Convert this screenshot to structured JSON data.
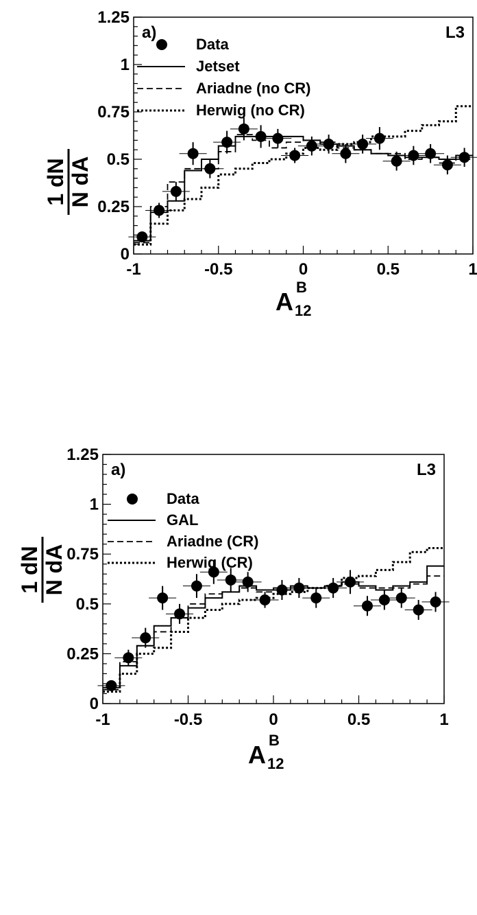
{
  "chart_data": [
    {
      "type": "line",
      "panel_label": "a)",
      "experiment": "L3",
      "xlabel": {
        "main": "A",
        "sub": "12",
        "sup": "B"
      },
      "ylabel": {
        "top": "1 dN",
        "bottom": "N dA"
      },
      "xlim": [
        -1,
        1
      ],
      "ylim": [
        0,
        1.25
      ],
      "xticks": [
        "-1",
        "-0.5",
        "0",
        "0.5",
        "1"
      ],
      "yticks": [
        "0",
        "0.25",
        "0.5",
        "0.75",
        "1",
        "1.25"
      ],
      "legend": [
        {
          "label": "Data",
          "style": "marker"
        },
        {
          "label": "Jetset",
          "style": "solid"
        },
        {
          "label": "Ariadne (no CR)",
          "style": "dashed"
        },
        {
          "label": "Herwig (no CR)",
          "style": "dotted"
        }
      ],
      "data": {
        "name": "Data",
        "x": [
          -0.95,
          -0.85,
          -0.75,
          -0.65,
          -0.55,
          -0.45,
          -0.35,
          -0.25,
          -0.15,
          -0.05,
          0.05,
          0.15,
          0.25,
          0.35,
          0.45,
          0.55,
          0.65,
          0.75,
          0.85,
          0.95
        ],
        "y": [
          0.09,
          0.23,
          0.33,
          0.53,
          0.45,
          0.59,
          0.66,
          0.62,
          0.61,
          0.52,
          0.57,
          0.58,
          0.53,
          0.58,
          0.61,
          0.49,
          0.52,
          0.53,
          0.47,
          0.51
        ],
        "err": [
          0.02,
          0.04,
          0.05,
          0.06,
          0.05,
          0.06,
          0.06,
          0.06,
          0.05,
          0.04,
          0.05,
          0.05,
          0.05,
          0.05,
          0.06,
          0.05,
          0.05,
          0.05,
          0.05,
          0.05
        ]
      },
      "series": [
        {
          "name": "Jetset",
          "style": "solid",
          "bin_edges": [
            -1,
            -0.9,
            -0.8,
            -0.7,
            -0.6,
            -0.5,
            -0.4,
            -0.3,
            -0.2,
            -0.1,
            0,
            0.1,
            0.2,
            0.3,
            0.4,
            0.5,
            0.6,
            0.7,
            0.8,
            0.9,
            1
          ],
          "values": [
            0.07,
            0.22,
            0.28,
            0.44,
            0.5,
            0.57,
            0.62,
            0.62,
            0.62,
            0.62,
            0.6,
            0.58,
            0.57,
            0.55,
            0.53,
            0.52,
            0.51,
            0.51,
            0.5,
            0.52
          ]
        },
        {
          "name": "Ariadne (no CR)",
          "style": "dashed",
          "bin_edges": [
            -1,
            -0.9,
            -0.8,
            -0.7,
            -0.6,
            -0.5,
            -0.4,
            -0.3,
            -0.2,
            -0.1,
            0,
            0.1,
            0.2,
            0.3,
            0.4,
            0.5,
            0.6,
            0.7,
            0.8,
            0.9,
            1
          ],
          "values": [
            0.06,
            0.25,
            0.38,
            0.45,
            0.45,
            0.54,
            0.63,
            0.6,
            0.56,
            0.59,
            0.6,
            0.59,
            0.56,
            0.55,
            0.53,
            0.53,
            0.5,
            0.51,
            0.48,
            0.5
          ]
        },
        {
          "name": "Herwig (no CR)",
          "style": "dotted",
          "bin_edges": [
            -1,
            -0.9,
            -0.8,
            -0.7,
            -0.6,
            -0.5,
            -0.4,
            -0.3,
            -0.2,
            -0.1,
            0,
            0.1,
            0.2,
            0.3,
            0.4,
            0.5,
            0.6,
            0.7,
            0.8,
            0.9,
            1
          ],
          "values": [
            0.05,
            0.16,
            0.23,
            0.29,
            0.35,
            0.42,
            0.45,
            0.48,
            0.5,
            0.53,
            0.56,
            0.55,
            0.58,
            0.59,
            0.62,
            0.62,
            0.65,
            0.68,
            0.7,
            0.78
          ]
        }
      ]
    },
    {
      "type": "line",
      "panel_label": "a)",
      "experiment": "L3",
      "xlabel": {
        "main": "A",
        "sub": "12",
        "sup": "B"
      },
      "ylabel": {
        "top": "1 dN",
        "bottom": "N dA"
      },
      "xlim": [
        -1,
        1
      ],
      "ylim": [
        0,
        1.25
      ],
      "xticks": [
        "-1",
        "-0.5",
        "0",
        "0.5",
        "1"
      ],
      "yticks": [
        "0",
        "0.25",
        "0.5",
        "0.75",
        "1",
        "1.25"
      ],
      "legend": [
        {
          "label": "Data",
          "style": "marker"
        },
        {
          "label": "GAL",
          "style": "solid"
        },
        {
          "label": "Ariadne (CR)",
          "style": "dashed"
        },
        {
          "label": "Herwig (CR)",
          "style": "dotted"
        }
      ],
      "data": {
        "name": "Data",
        "x": [
          -0.95,
          -0.85,
          -0.75,
          -0.65,
          -0.55,
          -0.45,
          -0.35,
          -0.25,
          -0.15,
          -0.05,
          0.05,
          0.15,
          0.25,
          0.35,
          0.45,
          0.55,
          0.65,
          0.75,
          0.85,
          0.95
        ],
        "y": [
          0.09,
          0.23,
          0.33,
          0.53,
          0.45,
          0.59,
          0.66,
          0.62,
          0.61,
          0.52,
          0.57,
          0.58,
          0.53,
          0.58,
          0.61,
          0.49,
          0.52,
          0.53,
          0.47,
          0.51
        ],
        "err": [
          0.02,
          0.04,
          0.05,
          0.06,
          0.05,
          0.06,
          0.06,
          0.06,
          0.05,
          0.04,
          0.05,
          0.05,
          0.05,
          0.05,
          0.06,
          0.05,
          0.05,
          0.05,
          0.05,
          0.05
        ]
      },
      "series": [
        {
          "name": "GAL",
          "style": "solid",
          "bin_edges": [
            -1,
            -0.9,
            -0.8,
            -0.7,
            -0.6,
            -0.5,
            -0.4,
            -0.3,
            -0.2,
            -0.1,
            0,
            0.1,
            0.2,
            0.3,
            0.4,
            0.5,
            0.6,
            0.7,
            0.8,
            0.9,
            1
          ],
          "values": [
            0.08,
            0.19,
            0.29,
            0.39,
            0.43,
            0.48,
            0.53,
            0.56,
            0.59,
            0.57,
            0.57,
            0.59,
            0.58,
            0.59,
            0.61,
            0.59,
            0.57,
            0.59,
            0.61,
            0.69
          ]
        },
        {
          "name": "Ariadne (CR)",
          "style": "dashed",
          "bin_edges": [
            -1,
            -0.9,
            -0.8,
            -0.7,
            -0.6,
            -0.5,
            -0.4,
            -0.3,
            -0.2,
            -0.1,
            0,
            0.1,
            0.2,
            0.3,
            0.4,
            0.5,
            0.6,
            0.7,
            0.8,
            0.9,
            1
          ],
          "values": [
            0.07,
            0.21,
            0.29,
            0.36,
            0.43,
            0.5,
            0.55,
            0.56,
            0.58,
            0.56,
            0.58,
            0.58,
            0.58,
            0.59,
            0.6,
            0.58,
            0.58,
            0.58,
            0.6,
            0.64
          ]
        },
        {
          "name": "Herwig (CR)",
          "style": "dotted",
          "bin_edges": [
            -1,
            -0.9,
            -0.8,
            -0.7,
            -0.6,
            -0.5,
            -0.4,
            -0.3,
            -0.2,
            -0.1,
            0,
            0.1,
            0.2,
            0.3,
            0.4,
            0.5,
            0.6,
            0.7,
            0.8,
            0.9,
            1
          ],
          "values": [
            0.06,
            0.15,
            0.25,
            0.28,
            0.36,
            0.43,
            0.47,
            0.5,
            0.52,
            0.53,
            0.55,
            0.56,
            0.58,
            0.59,
            0.63,
            0.64,
            0.67,
            0.71,
            0.76,
            0.78
          ]
        }
      ]
    }
  ]
}
